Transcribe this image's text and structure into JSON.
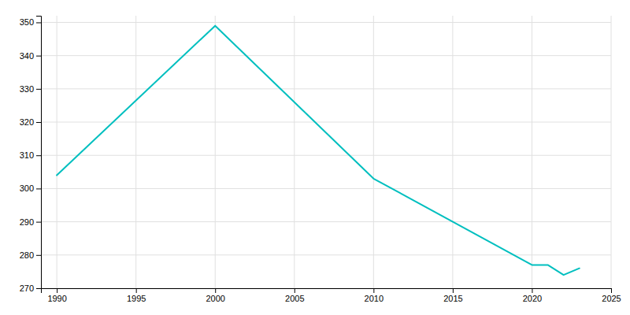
{
  "chart_data": {
    "type": "line",
    "x": [
      1990,
      2000,
      2010,
      2020,
      2021,
      2022,
      2023
    ],
    "values": [
      304,
      349,
      303,
      277,
      277,
      274,
      276
    ],
    "color": "#00BFBF",
    "xlim": [
      1989,
      2025
    ],
    "ylim": [
      270,
      352
    ],
    "xticks": [
      1990,
      1995,
      2000,
      2005,
      2010,
      2015,
      2020,
      2025
    ],
    "yticks": [
      270,
      280,
      290,
      300,
      310,
      320,
      330,
      340,
      350
    ],
    "grid": true
  }
}
